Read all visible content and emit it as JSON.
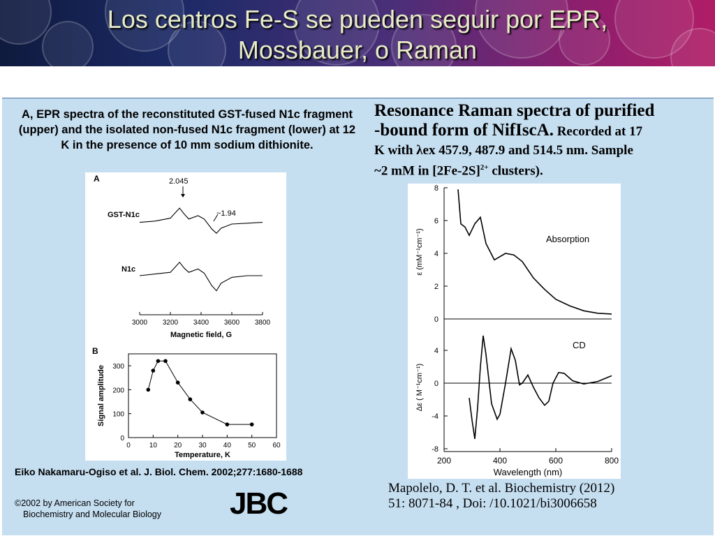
{
  "slide": {
    "title_line1": "Los centros Fe-S se pueden seguir por EPR,",
    "title_line2": "Mossbauer, o Raman"
  },
  "left": {
    "caption": "A, EPR spectra of the reconstituted GST-fused N1c fragment (upper) and the isolated non-fused N1c fragment (lower) at 12 K in the presence of 10 mm sodium dithionite.",
    "citation": "Eiko Nakamaru-Ogiso et al. J. Biol. Chem. 2002;277:1680-1688",
    "copyright_line1": "©2002 by American Society for",
    "copyright_line2": "Biochemistry and Molecular Biology",
    "logo": "JBC",
    "panel_a": {
      "label": "A",
      "trace1_label": "GST-N1c",
      "trace2_label": "N1c",
      "annotation1": "2.045",
      "annotation2": "~1.94",
      "xlabel": "Magnetic field, G",
      "xticks": [
        "3000",
        "3200",
        "3400",
        "3600",
        "3800"
      ]
    },
    "panel_b": {
      "label": "B",
      "xlabel": "Temperature, K",
      "ylabel": "Signal amplitude",
      "xticks": [
        "0",
        "10",
        "20",
        "30",
        "40",
        "50",
        "60"
      ],
      "yticks": [
        "0",
        "100",
        "200",
        "300"
      ]
    }
  },
  "right": {
    "heading_line1": "Resonance Raman spectra of purified",
    "heading_line2_big": "-bound form of NifIscA.",
    "heading_line2_small": " Recorded at 17",
    "heading_line3": "K with λex 457.9, 487.9 and 514.5 nm. Sample",
    "heading_line4_pre": "~2 mM in [2Fe-2S]",
    "heading_line4_sup": "2+",
    "heading_line4_post": " clusters).",
    "citation_line1": "Mapolelo, D. T.  et al. Biochemistry (2012)",
    "citation_line2": "51: 8071-84  , Doi: /10.1021/bi3006658",
    "figure": {
      "label_absorption": "Absorption",
      "label_cd": "CD",
      "xlabel": "Wavelength (nm)",
      "ylabel_top": "ε (mM⁻¹cm⁻¹)",
      "ylabel_bottom": "Δε ( M⁻¹cm⁻¹)",
      "xticks": [
        "200",
        "400",
        "600",
        "800"
      ],
      "yticks_top": [
        "8",
        "6",
        "4",
        "2",
        "0"
      ],
      "yticks_bottom": [
        "4",
        "0",
        "-4",
        "-8"
      ]
    }
  },
  "chart_data": [
    {
      "type": "line",
      "panel": "A",
      "xlabel": "Magnetic field, G",
      "xlim": [
        3000,
        3800
      ],
      "series": [
        {
          "name": "GST-N1c",
          "x": [
            3000,
            3100,
            3200,
            3260,
            3290,
            3320,
            3380,
            3420,
            3470,
            3500,
            3530,
            3600,
            3700,
            3800
          ],
          "y": [
            0.2,
            0.35,
            0.7,
            1.9,
            1.2,
            0.6,
            1.0,
            0.6,
            -0.6,
            -1.1,
            -0.5,
            0.0,
            0.1,
            0.2
          ]
        },
        {
          "name": "N1c",
          "x": [
            3000,
            3100,
            3200,
            3260,
            3290,
            3320,
            3380,
            3420,
            3470,
            3500,
            3530,
            3600,
            3700,
            3800
          ],
          "y": [
            0.0,
            0.2,
            0.4,
            1.6,
            0.9,
            0.4,
            0.8,
            0.3,
            -1.2,
            -1.8,
            -0.9,
            -0.2,
            0.0,
            0.0
          ]
        }
      ]
    },
    {
      "type": "scatter",
      "panel": "B",
      "xlabel": "Temperature, K",
      "ylabel": "Signal amplitude",
      "xlim": [
        0,
        60
      ],
      "ylim": [
        0,
        350
      ],
      "x": [
        8,
        10,
        12,
        15,
        20,
        25,
        30,
        40,
        50
      ],
      "y": [
        200,
        280,
        320,
        320,
        230,
        160,
        105,
        55,
        55
      ]
    },
    {
      "type": "line",
      "panel": "Absorption",
      "xlabel": "Wavelength (nm)",
      "ylabel": "ε (mM⁻¹cm⁻¹)",
      "xlim": [
        200,
        800
      ],
      "ylim": [
        0,
        8
      ],
      "x": [
        250,
        260,
        275,
        290,
        310,
        330,
        350,
        380,
        420,
        450,
        480,
        520,
        560,
        600,
        650,
        700,
        750,
        800
      ],
      "y": [
        7.9,
        5.8,
        5.6,
        5.1,
        5.8,
        6.2,
        4.6,
        3.6,
        4.0,
        3.9,
        3.5,
        2.5,
        1.8,
        1.2,
        0.8,
        0.5,
        0.35,
        0.3
      ]
    },
    {
      "type": "line",
      "panel": "CD",
      "xlabel": "Wavelength (nm)",
      "ylabel": "Δε ( M⁻¹cm⁻¹)",
      "xlim": [
        200,
        800
      ],
      "ylim": [
        -8,
        6
      ],
      "x": [
        290,
        300,
        310,
        320,
        330,
        340,
        350,
        370,
        390,
        400,
        420,
        440,
        455,
        470,
        480,
        500,
        520,
        540,
        560,
        575,
        590,
        610,
        630,
        660,
        700,
        750,
        800
      ],
      "y": [
        -1.8,
        -4.5,
        -6.8,
        -3.0,
        2.0,
        5.8,
        3.5,
        -2.5,
        -4.4,
        -3.8,
        0.0,
        4.2,
        2.8,
        -0.2,
        0.0,
        1.0,
        -0.5,
        -1.8,
        -2.7,
        -2.2,
        0.0,
        1.3,
        1.2,
        0.3,
        -0.1,
        0.2,
        0.9
      ]
    }
  ]
}
